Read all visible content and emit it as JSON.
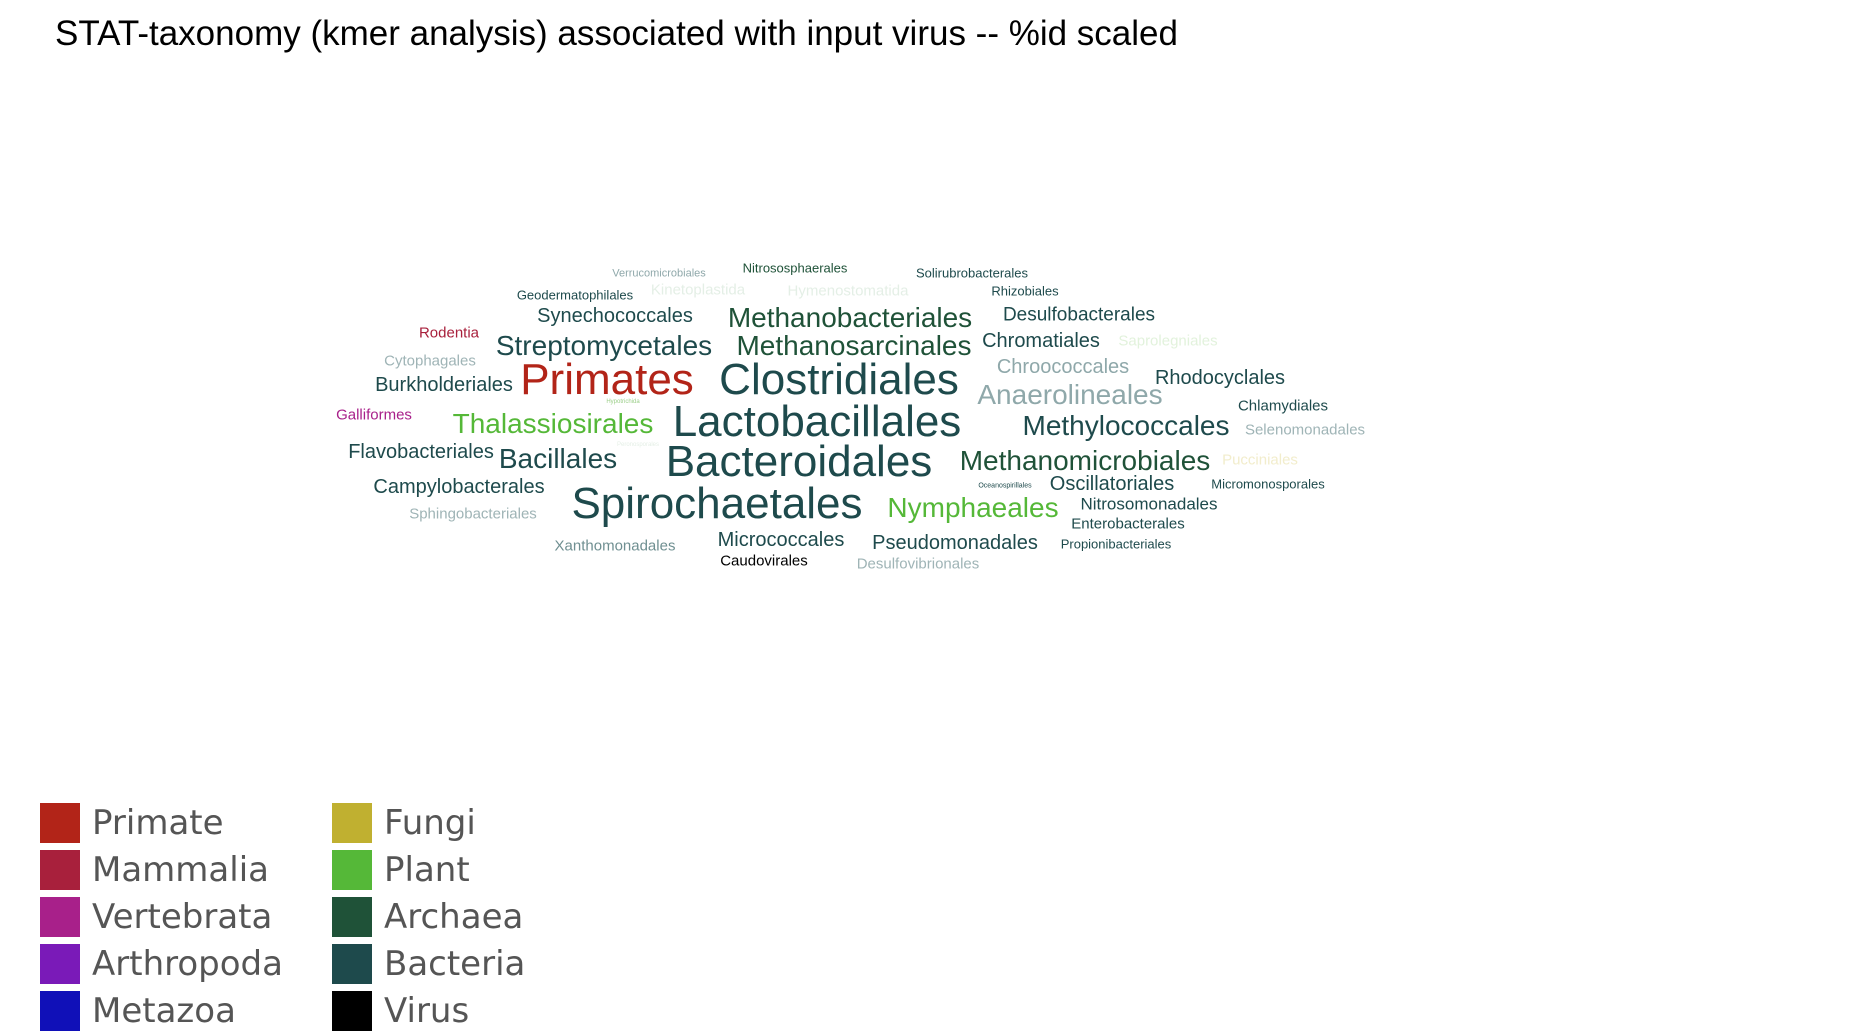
{
  "title": "STAT-taxonomy (kmer analysis) associated with input virus -- %id scaled",
  "colors": {
    "primate": "#b22418",
    "mammalia": "#a8203c",
    "vertebrata": "#a8208a",
    "arthropoda": "#7a1ab8",
    "metazoa": "#1010b8",
    "fungi": "#c0b030",
    "plant": "#55b838",
    "archaea": "#1f5238",
    "bacteria": "#1e4a4c",
    "virus": "#000000"
  },
  "legend": [
    {
      "label": "Primate",
      "color": "#b22418"
    },
    {
      "label": "Mammalia",
      "color": "#a8203c"
    },
    {
      "label": "Vertebrata",
      "color": "#a8208a"
    },
    {
      "label": "Arthropoda",
      "color": "#7a1ab8"
    },
    {
      "label": "Metazoa",
      "color": "#1010b8"
    },
    {
      "label": "Fungi",
      "color": "#c0b030"
    },
    {
      "label": "Plant",
      "color": "#55b838"
    },
    {
      "label": "Archaea",
      "color": "#1f5238"
    },
    {
      "label": "Bacteria",
      "color": "#1e4a4c"
    },
    {
      "label": "Virus",
      "color": "#000000"
    }
  ],
  "words": [
    {
      "text": "Verrucomicrobiales",
      "color": "#8fa8aa"
    },
    {
      "text": "Nitrososphaerales",
      "color": "#1f5238"
    },
    {
      "text": "Solirubrobacterales",
      "color": "#1e4a4c"
    },
    {
      "text": "Geodermatophilales",
      "color": "#1e4a4c"
    },
    {
      "text": "Kinetoplastida",
      "color": "#e4efe6"
    },
    {
      "text": "Hymenostomatida",
      "color": "#e4efe6"
    },
    {
      "text": "Rhizobiales",
      "color": "#1e4a4c"
    },
    {
      "text": "Synechococcales",
      "color": "#1e4a4c"
    },
    {
      "text": "Methanobacteriales",
      "color": "#1f5238"
    },
    {
      "text": "Desulfobacterales",
      "color": "#1e4a4c"
    },
    {
      "text": "Rodentia",
      "color": "#a8203c"
    },
    {
      "text": "Streptomycetales",
      "color": "#1e4a4c"
    },
    {
      "text": "Methanosarcinales",
      "color": "#1f5238"
    },
    {
      "text": "Chromatiales",
      "color": "#1e4a4c"
    },
    {
      "text": "Saprolegniales",
      "color": "#e2f2dc"
    },
    {
      "text": "Cytophagales",
      "color": "#9fb4b6"
    },
    {
      "text": "Chroococcales",
      "color": "#8fa8aa"
    },
    {
      "text": "Primates",
      "color": "#b22418"
    },
    {
      "text": "Clostridiales",
      "color": "#1e4a4c"
    },
    {
      "text": "Rhodocyclales",
      "color": "#1e4a4c"
    },
    {
      "text": "Burkholderiales",
      "color": "#1e4a4c"
    },
    {
      "text": "Anaerolineales",
      "color": "#8fa8aa"
    },
    {
      "text": "Chlamydiales",
      "color": "#1e4a4c"
    },
    {
      "text": "Hypotrichida",
      "color": "#9ccf8a"
    },
    {
      "text": "Galliformes",
      "color": "#a8208a"
    },
    {
      "text": "Thalassiosirales",
      "color": "#55b838"
    },
    {
      "text": "Lactobacillales",
      "color": "#1e4a4c"
    },
    {
      "text": "Methylococcales",
      "color": "#1e4a4c"
    },
    {
      "text": "Selenomonadales",
      "color": "#9fb4b6"
    },
    {
      "text": "Peronosporales",
      "color": "#e4efe6"
    },
    {
      "text": "Flavobacteriales",
      "color": "#1e4a4c"
    },
    {
      "text": "Bacillales",
      "color": "#1e4a4c"
    },
    {
      "text": "Bacteroidales",
      "color": "#1e4a4c"
    },
    {
      "text": "Methanomicrobiales",
      "color": "#1f5238"
    },
    {
      "text": "Pucciniales",
      "color": "#f2edcc"
    },
    {
      "text": "Campylobacterales",
      "color": "#1e4a4c"
    },
    {
      "text": "Spirochaetales",
      "color": "#1e4a4c"
    },
    {
      "text": "Oceanospirillales",
      "color": "#1e4a4c"
    },
    {
      "text": "Oscillatoriales",
      "color": "#1e4a4c"
    },
    {
      "text": "Micromonosporales",
      "color": "#1e4a4c"
    },
    {
      "text": "Sphingobacteriales",
      "color": "#9fb4b6"
    },
    {
      "text": "Nymphaeales",
      "color": "#55b838"
    },
    {
      "text": "Nitrosomonadales",
      "color": "#1e4a4c"
    },
    {
      "text": "Enterobacterales",
      "color": "#1e4a4c"
    },
    {
      "text": "Micrococcales",
      "color": "#1e4a4c"
    },
    {
      "text": "Xanthomonadales",
      "color": "#6f8f91"
    },
    {
      "text": "Pseudomonadales",
      "color": "#1e4a4c"
    },
    {
      "text": "Propionibacteriales",
      "color": "#1e4a4c"
    },
    {
      "text": "Caudovirales",
      "color": "#000000"
    },
    {
      "text": "Desulfovibrionales",
      "color": "#9fb4b6"
    }
  ]
}
